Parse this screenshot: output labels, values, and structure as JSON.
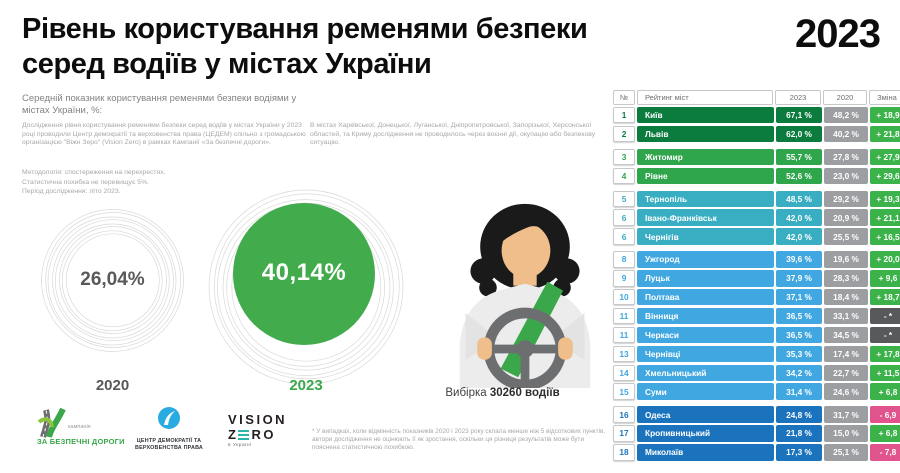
{
  "palette": {
    "g1": "#0c7b3e",
    "g2": "#2fa54c",
    "g3": "#39aec2",
    "g4": "#41a7e0",
    "g5": "#1b73bd",
    "badge_green": "#3cb24a",
    "badge_gray": "#58595b",
    "badge_pink": "#e0538c",
    "gray_2020": "#9c9ea1",
    "circle_green": "#42ac4c",
    "accent_green": "#3aa74a"
  },
  "header": {
    "title_line1": "Рівень користування ременями безпеки",
    "title_line2": "серед водіїв у містах України",
    "year_badge": "2023"
  },
  "intro": {
    "subtitle": "Середній показник користування ременями безпеки водіями у містах України, %:",
    "about": "Дослідження рівня користування ременями безпеки серед водіїв у містах України у 2023 році проводили Центр демократії та верховенства права (ЦЕДЕМ) спільно з громадською організацією \"Віжн Зеро\" (Vision Zero) в рамках Кампанії «За безпечні дороги».",
    "methodology_1": "Методологія: спостереження на перехрестях.",
    "methodology_2": "Статистична похибка не перевищує 5%.",
    "methodology_3": "Період дослідження: літо 2023.",
    "regions_note": "В містах Харківської, Донецької, Луганської, Дніпропетровської, Запорізької, Херсонської областей, та Криму дослідження не проводилось через воєнні дії, окупацію або безпекову ситуацію."
  },
  "circles": {
    "left": {
      "value": "26,04%",
      "year": "2020"
    },
    "right": {
      "value": "40,14%",
      "year": "2023"
    }
  },
  "sample": {
    "label": "Вибірка",
    "value": "30260 водіїв"
  },
  "footnote": "* У випадках, коли відмінність показників 2020 і 2023 року склала менше ніж 5 відсоткових пунктів, автори дослідження не оцінюють її як зростання, оскільки ця різниця результатів може бути пояснена статистичною похибкою.",
  "logos": {
    "campaign": {
      "small": "кампанія",
      "main": "ЗА БЕЗПЕЧНІ ДОРОГИ"
    },
    "cedem": {
      "line1": "ЦЕНТР ДЕМОКРАТІЇ ТА",
      "line2": "ВЕРХОВЕНСТВА ПРАВА"
    },
    "vision_zero": {
      "word1": "VISION",
      "z": "Z",
      "ro": "RO",
      "tagline": "в Україні"
    }
  },
  "table": {
    "headers": {
      "num": "№",
      "city": "Рейтинг міст",
      "y2023": "2023",
      "y2020": "2020",
      "change": "Зміна"
    },
    "rows": [
      {
        "rank": "1",
        "city": "Київ",
        "v2023": "67,1 %",
        "v2020": "48,2 %",
        "change": "+ 18,9",
        "group": "g1",
        "trend": "up",
        "gap_before": false
      },
      {
        "rank": "2",
        "city": "Львів",
        "v2023": "62,0 %",
        "v2020": "40,2 %",
        "change": "+ 21,8",
        "group": "g1",
        "trend": "up",
        "gap_before": false
      },
      {
        "rank": "3",
        "city": "Житомир",
        "v2023": "55,7 %",
        "v2020": "27,8 %",
        "change": "+ 27,9",
        "group": "g2",
        "trend": "up",
        "gap_before": true
      },
      {
        "rank": "4",
        "city": "Рівне",
        "v2023": "52,6 %",
        "v2020": "23,0 %",
        "change": "+ 29,6",
        "group": "g2",
        "trend": "up",
        "gap_before": false
      },
      {
        "rank": "5",
        "city": "Тернопіль",
        "v2023": "48,5 %",
        "v2020": "29,2 %",
        "change": "+ 19,3",
        "group": "g3",
        "trend": "up",
        "gap_before": true
      },
      {
        "rank": "6",
        "city": "Івано-Франківськ",
        "v2023": "42,0 %",
        "v2020": "20,9 %",
        "change": "+ 21,1",
        "group": "g3",
        "trend": "up",
        "gap_before": false
      },
      {
        "rank": "6",
        "city": "Чернігів",
        "v2023": "42,0 %",
        "v2020": "25,5 %",
        "change": "+ 16,5",
        "group": "g3",
        "trend": "up",
        "gap_before": false
      },
      {
        "rank": "8",
        "city": "Ужгород",
        "v2023": "39,6 %",
        "v2020": "19,6 %",
        "change": "+ 20,0",
        "group": "g4",
        "trend": "up",
        "gap_before": true
      },
      {
        "rank": "9",
        "city": "Луцьк",
        "v2023": "37,9 %",
        "v2020": "28,3 %",
        "change": "+ 9,6",
        "group": "g4",
        "trend": "up",
        "gap_before": false
      },
      {
        "rank": "10",
        "city": "Полтава",
        "v2023": "37,1 %",
        "v2020": "18,4 %",
        "change": "+ 18,7",
        "group": "g4",
        "trend": "up",
        "gap_before": false
      },
      {
        "rank": "11",
        "city": "Вінниця",
        "v2023": "36,5 %",
        "v2020": "33,1 %",
        "change": "- *",
        "group": "g4",
        "trend": "neutral",
        "gap_before": false
      },
      {
        "rank": "11",
        "city": "Черкаси",
        "v2023": "36,5 %",
        "v2020": "34,5 %",
        "change": "- *",
        "group": "g4",
        "trend": "neutral",
        "gap_before": false
      },
      {
        "rank": "13",
        "city": "Чернівці",
        "v2023": "35,3 %",
        "v2020": "17,4 %",
        "change": "+ 17,8",
        "group": "g4",
        "trend": "up",
        "gap_before": false
      },
      {
        "rank": "14",
        "city": "Хмельницький",
        "v2023": "34,2 %",
        "v2020": "22,7 %",
        "change": "+ 11,5",
        "group": "g4",
        "trend": "up",
        "gap_before": false
      },
      {
        "rank": "15",
        "city": "Суми",
        "v2023": "31,4 %",
        "v2020": "24,6 %",
        "change": "+ 6,8",
        "group": "g4",
        "trend": "up",
        "gap_before": false
      },
      {
        "rank": "16",
        "city": "Одеса",
        "v2023": "24,8 %",
        "v2020": "31,7 %",
        "change": "- 6,9",
        "group": "g5",
        "trend": "down",
        "gap_before": true
      },
      {
        "rank": "17",
        "city": "Кропивницький",
        "v2023": "21,8 %",
        "v2020": "15,0 %",
        "change": "+ 6,8",
        "group": "g5",
        "trend": "up",
        "gap_before": false
      },
      {
        "rank": "18",
        "city": "Миколаїв",
        "v2023": "17,3 %",
        "v2020": "25,1 %",
        "change": "- 7,8",
        "group": "g5",
        "trend": "down",
        "gap_before": false
      }
    ]
  },
  "chart_data": [
    {
      "type": "pie",
      "title": "Середній показник користування ременями безпеки водіями у містах України, %",
      "categories": [
        "2020",
        "2023"
      ],
      "values": [
        26.04,
        40.14
      ],
      "unit": "%",
      "colors": [
        "#ffffff",
        "#42ac4c"
      ],
      "note": "two proportional circles, sample 30260 drivers"
    },
    {
      "type": "table",
      "title": "Рейтинг міст",
      "columns": [
        "№",
        "Рейтинг міст",
        "2023 (%)",
        "2020 (%)",
        "Зміна (в.п.)"
      ],
      "rows": [
        [
          1,
          "Київ",
          67.1,
          48.2,
          18.9
        ],
        [
          2,
          "Львів",
          62.0,
          40.2,
          21.8
        ],
        [
          3,
          "Житомир",
          55.7,
          27.8,
          27.9
        ],
        [
          4,
          "Рівне",
          52.6,
          23.0,
          29.6
        ],
        [
          5,
          "Тернопіль",
          48.5,
          29.2,
          19.3
        ],
        [
          6,
          "Івано-Франківськ",
          42.0,
          20.9,
          21.1
        ],
        [
          6,
          "Чернігів",
          42.0,
          25.5,
          16.5
        ],
        [
          8,
          "Ужгород",
          39.6,
          19.6,
          20.0
        ],
        [
          9,
          "Луцьк",
          37.9,
          28.3,
          9.6
        ],
        [
          10,
          "Полтава",
          37.1,
          18.4,
          18.7
        ],
        [
          11,
          "Вінниця",
          36.5,
          33.1,
          null
        ],
        [
          11,
          "Черкаси",
          36.5,
          34.5,
          null
        ],
        [
          13,
          "Чернівці",
          35.3,
          17.4,
          17.8
        ],
        [
          14,
          "Хмельницький",
          34.2,
          22.7,
          11.5
        ],
        [
          15,
          "Суми",
          31.4,
          24.6,
          6.8
        ],
        [
          16,
          "Одеса",
          24.8,
          31.7,
          -6.9
        ],
        [
          17,
          "Кропивницький",
          21.8,
          15.0,
          6.8
        ],
        [
          18,
          "Миколаїв",
          17.3,
          25.1,
          -7.8
        ]
      ]
    }
  ]
}
